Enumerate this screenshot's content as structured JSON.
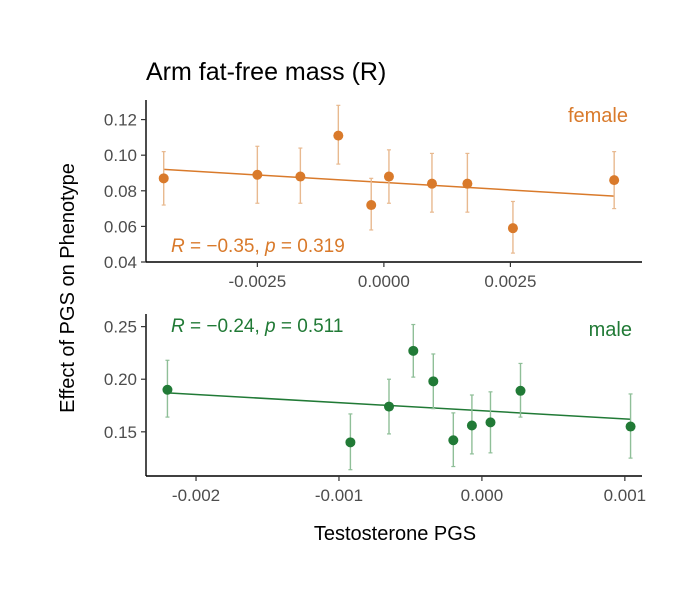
{
  "chart_data": {
    "type": "scatter",
    "title": "Arm fat-free mass (R)",
    "xlabel": "Testosterone PGS",
    "ylabel": "Effect of PGS on Phenotype",
    "panels": [
      {
        "name": "female",
        "color": "#d97a2b",
        "error_color": "#e8b98f",
        "stat_r": "R = −0.35",
        "stat_p": "p = 0.319",
        "xlim": [
          -0.0047,
          0.0051
        ],
        "ylim": [
          0.04,
          0.131
        ],
        "x_ticks": [
          -0.0025,
          0.0,
          0.0025
        ],
        "x_tick_labels": [
          "-0.0025",
          "0.0000",
          "0.0025"
        ],
        "y_ticks": [
          0.04,
          0.06,
          0.08,
          0.1,
          0.12
        ],
        "y_tick_labels": [
          "0.04",
          "0.06",
          "0.08",
          "0.10",
          "0.12"
        ],
        "points": [
          {
            "x": -0.00435,
            "y": 0.087,
            "lo": 0.072,
            "hi": 0.102
          },
          {
            "x": -0.0025,
            "y": 0.089,
            "lo": 0.073,
            "hi": 0.105
          },
          {
            "x": -0.00165,
            "y": 0.088,
            "lo": 0.073,
            "hi": 0.104
          },
          {
            "x": -0.0009,
            "y": 0.111,
            "lo": 0.095,
            "hi": 0.128
          },
          {
            "x": -0.00025,
            "y": 0.072,
            "lo": 0.058,
            "hi": 0.087
          },
          {
            "x": 0.0001,
            "y": 0.088,
            "lo": 0.073,
            "hi": 0.103
          },
          {
            "x": 0.00095,
            "y": 0.084,
            "lo": 0.068,
            "hi": 0.101
          },
          {
            "x": 0.00165,
            "y": 0.084,
            "lo": 0.068,
            "hi": 0.101
          },
          {
            "x": 0.00255,
            "y": 0.059,
            "lo": 0.045,
            "hi": 0.074
          },
          {
            "x": 0.00455,
            "y": 0.086,
            "lo": 0.07,
            "hi": 0.102
          }
        ],
        "fit": {
          "x": [
            -0.00435,
            0.00455
          ],
          "y": [
            0.092,
            0.077
          ]
        }
      },
      {
        "name": "male",
        "color": "#217a36",
        "error_color": "#8fbf98",
        "stat_r": "R = −0.24",
        "stat_p": "p = 0.511",
        "xlim": [
          -0.00235,
          0.00112
        ],
        "ylim": [
          0.108,
          0.262
        ],
        "x_ticks": [
          -0.002,
          -0.001,
          0.0,
          0.001
        ],
        "x_tick_labels": [
          "-0.002",
          "-0.001",
          "0.000",
          "0.001"
        ],
        "y_ticks": [
          0.15,
          0.2,
          0.25
        ],
        "y_tick_labels": [
          "0.15",
          "0.20",
          "0.25"
        ],
        "points": [
          {
            "x": -0.0022,
            "y": 0.19,
            "lo": 0.164,
            "hi": 0.218
          },
          {
            "x": -0.00092,
            "y": 0.14,
            "lo": 0.114,
            "hi": 0.167
          },
          {
            "x": -0.00065,
            "y": 0.174,
            "lo": 0.148,
            "hi": 0.2
          },
          {
            "x": -0.00048,
            "y": 0.227,
            "lo": 0.202,
            "hi": 0.252
          },
          {
            "x": -0.00034,
            "y": 0.198,
            "lo": 0.172,
            "hi": 0.224
          },
          {
            "x": -0.0002,
            "y": 0.142,
            "lo": 0.117,
            "hi": 0.168
          },
          {
            "x": -7e-05,
            "y": 0.156,
            "lo": 0.129,
            "hi": 0.185
          },
          {
            "x": 6e-05,
            "y": 0.159,
            "lo": 0.13,
            "hi": 0.188
          },
          {
            "x": 0.00027,
            "y": 0.189,
            "lo": 0.164,
            "hi": 0.215
          },
          {
            "x": 0.00104,
            "y": 0.155,
            "lo": 0.125,
            "hi": 0.186
          }
        ],
        "fit": {
          "x": [
            -0.0022,
            0.00104
          ],
          "y": [
            0.187,
            0.162
          ]
        }
      }
    ]
  }
}
